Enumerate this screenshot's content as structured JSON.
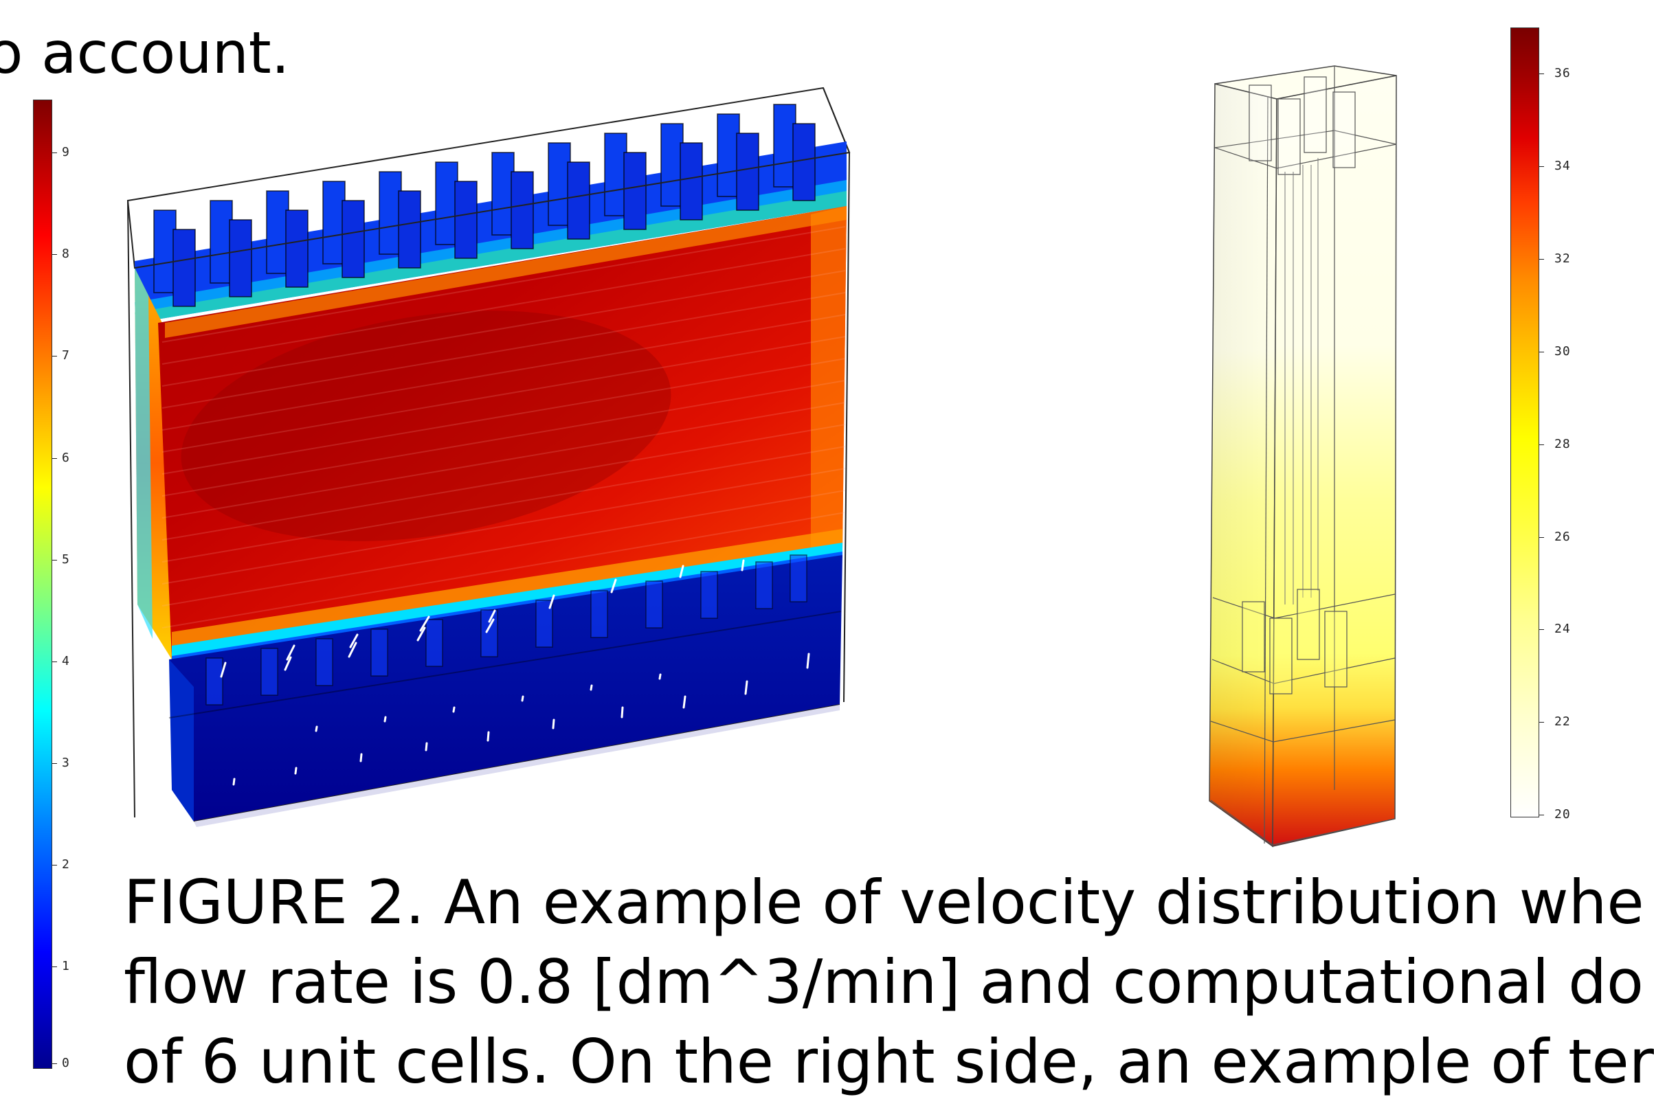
{
  "text": {
    "top_line": "o account.",
    "caption_line_1": "FIGURE 2. An example of velocity distribution whe",
    "caption_line_2": "flow rate is 0.8 [dm^3/min] and computational do",
    "caption_line_3": "of 6 unit cells. On the right side, an example of ter"
  },
  "velocity_colorbar": {
    "ticks": [
      "9",
      "8",
      "7",
      "6",
      "5",
      "4",
      "3",
      "2",
      "1",
      "0"
    ],
    "colormap": [
      "#00008f",
      "#0000ff",
      "#00ffff",
      "#ffff00",
      "#ff0000",
      "#800000"
    ]
  },
  "temperature_colorbar": {
    "ticks": [
      "36",
      "34",
      "32",
      "30",
      "28",
      "26",
      "24",
      "22",
      "20"
    ],
    "colormap": [
      "#ffffff",
      "#ffff00",
      "#ff8c00",
      "#ff0000",
      "#7a0000"
    ]
  },
  "colors": {
    "hot_red": "#d80f00",
    "deep_red": "#b00000",
    "low_blue": "#00008f",
    "mid_blue": "#0030ff",
    "pale_yellow": "#ffffe0"
  }
}
